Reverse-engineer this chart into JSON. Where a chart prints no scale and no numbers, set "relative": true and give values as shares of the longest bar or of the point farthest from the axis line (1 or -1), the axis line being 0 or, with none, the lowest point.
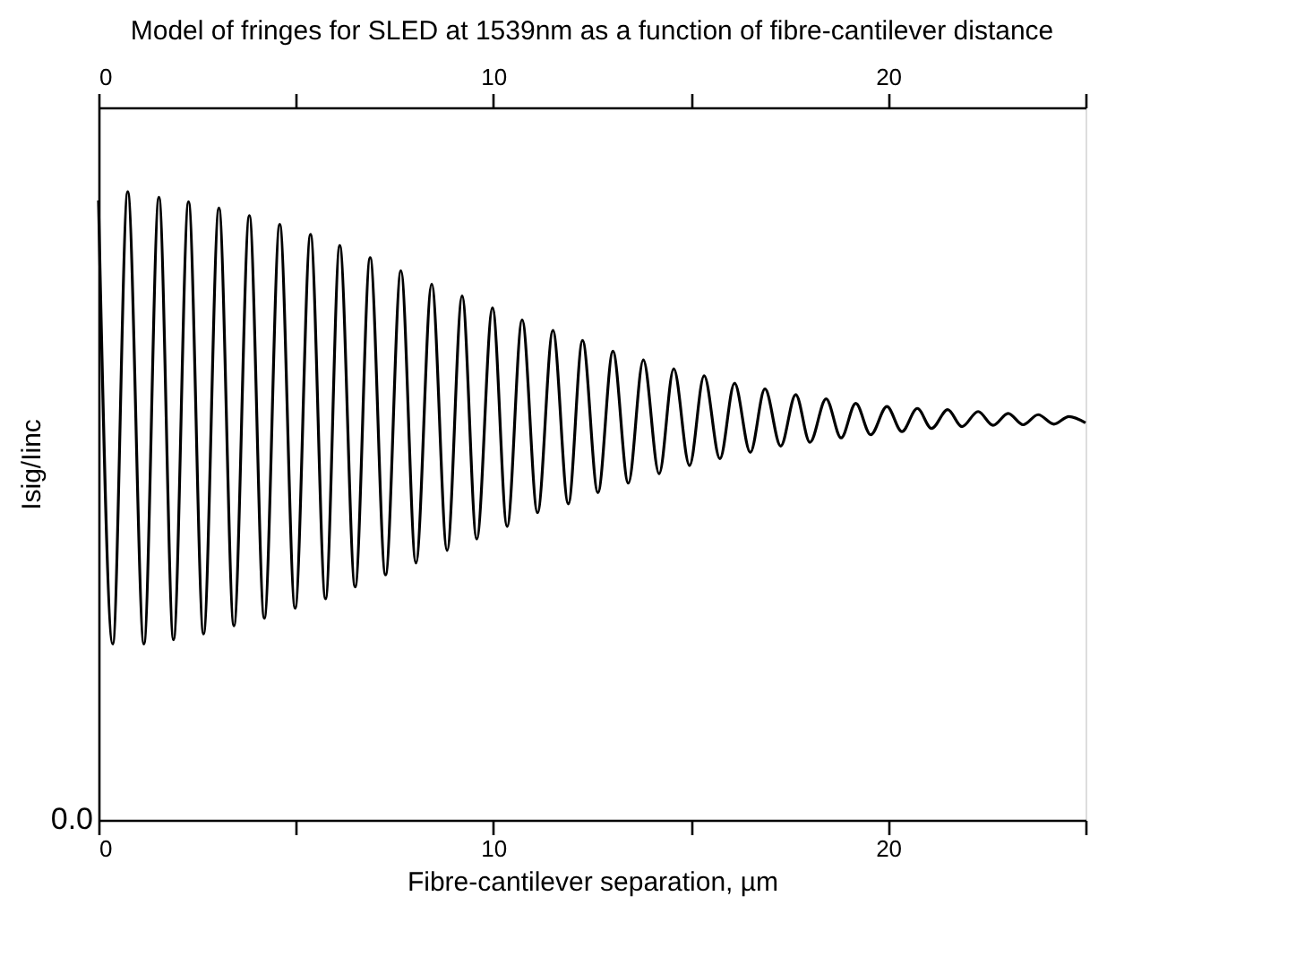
{
  "chart_data": {
    "type": "line",
    "title": "Model of fringes for SLED at 1539nm as a function of fibre-cantilever distance",
    "xlabel": "Fibre-cantilever separation, µm",
    "ylabel": "Isig/Iinc",
    "relative": true,
    "xlim": [
      0,
      25
    ],
    "xticks": [
      0,
      {
        "value": 5,
        "label": null
      },
      10,
      {
        "value": 15,
        "label": null
      },
      20,
      {
        "value": 25,
        "label": null
      }
    ],
    "x2lim": [
      0,
      25
    ],
    "x2ticks": [
      0,
      {
        "value": 5,
        "label": null
      },
      10,
      {
        "value": 15,
        "label": null
      },
      20,
      {
        "value": 25,
        "label": null
      }
    ],
    "annotations": [
      "0.0"
    ],
    "grid": false,
    "legend": false,
    "marker": "none",
    "line_style": "solid",
    "series": [
      {
        "color": "#000000",
        "x": [
          0,
          0.36,
          0.74,
          1.15,
          1.53,
          1.9,
          2.28,
          2.66,
          3.05,
          3.43,
          3.82,
          4.2,
          4.59,
          4.98,
          5.37,
          5.75,
          6.11,
          6.5,
          6.88,
          7.27,
          7.66,
          8.04,
          8.44,
          8.83,
          9.21,
          9.58,
          9.98,
          10.35,
          10.73,
          11.12,
          11.51,
          11.9,
          12.26,
          12.65,
          13.03,
          13.42,
          13.8,
          14.2,
          14.57,
          14.97,
          15.34,
          15.74,
          16.11,
          16.51,
          16.88,
          17.28,
          17.66,
          18.02,
          18.43,
          18.81,
          19.18,
          19.56,
          19.97,
          20.35,
          20.74,
          21.1,
          21.51,
          21.87,
          22.28,
          22.66,
          23.04,
          23.42,
          23.8,
          24.2,
          24.58,
          25.0
        ],
        "values": [
          0.986,
          0.28,
          1.0,
          0.28,
          0.991,
          0.287,
          0.984,
          0.296,
          0.974,
          0.309,
          0.962,
          0.321,
          0.948,
          0.337,
          0.932,
          0.352,
          0.914,
          0.371,
          0.895,
          0.39,
          0.874,
          0.409,
          0.853,
          0.429,
          0.834,
          0.447,
          0.815,
          0.467,
          0.796,
          0.489,
          0.779,
          0.503,
          0.763,
          0.521,
          0.746,
          0.536,
          0.732,
          0.551,
          0.718,
          0.564,
          0.707,
          0.575,
          0.695,
          0.585,
          0.686,
          0.595,
          0.677,
          0.601,
          0.67,
          0.608,
          0.663,
          0.613,
          0.658,
          0.618,
          0.655,
          0.623,
          0.653,
          0.626,
          0.65,
          0.628,
          0.647,
          0.629,
          0.645,
          0.63,
          0.642,
          0.632
        ]
      }
    ]
  }
}
